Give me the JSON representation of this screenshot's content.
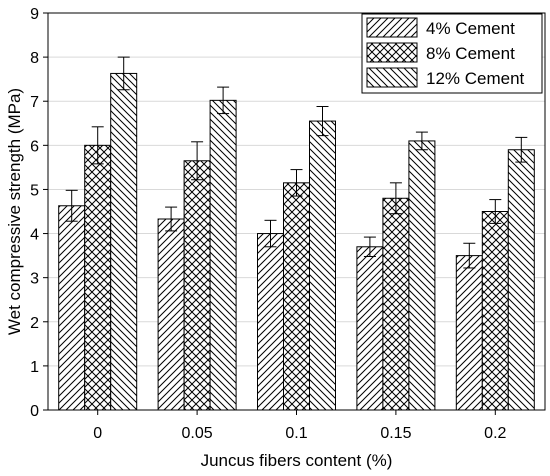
{
  "chart_data": {
    "type": "bar",
    "title": "",
    "xlabel": "Juncus fibers content (%)",
    "ylabel": "Wet compressive strength (MPa)",
    "categories": [
      "0",
      "0.05",
      "0.1",
      "0.15",
      "0.2"
    ],
    "ylim": [
      0,
      9
    ],
    "yticks": [
      "0",
      "1",
      "2",
      "3",
      "4",
      "5",
      "6",
      "7",
      "8",
      "9"
    ],
    "grid": true,
    "legend_position": "top-right",
    "series": [
      {
        "name": "4% Cement",
        "values": [
          4.63,
          4.33,
          4.0,
          3.7,
          3.5
        ],
        "errors": [
          0.35,
          0.27,
          0.3,
          0.22,
          0.28
        ],
        "pattern": "diagonal-forward"
      },
      {
        "name": "8% Cement",
        "values": [
          6.0,
          5.65,
          5.15,
          4.8,
          4.5
        ],
        "errors": [
          0.42,
          0.43,
          0.3,
          0.35,
          0.27
        ],
        "pattern": "crosshatch"
      },
      {
        "name": "12% Cement",
        "values": [
          7.63,
          7.02,
          6.55,
          6.1,
          5.9
        ],
        "errors": [
          0.37,
          0.3,
          0.33,
          0.2,
          0.28
        ],
        "pattern": "diagonal-back"
      }
    ]
  }
}
